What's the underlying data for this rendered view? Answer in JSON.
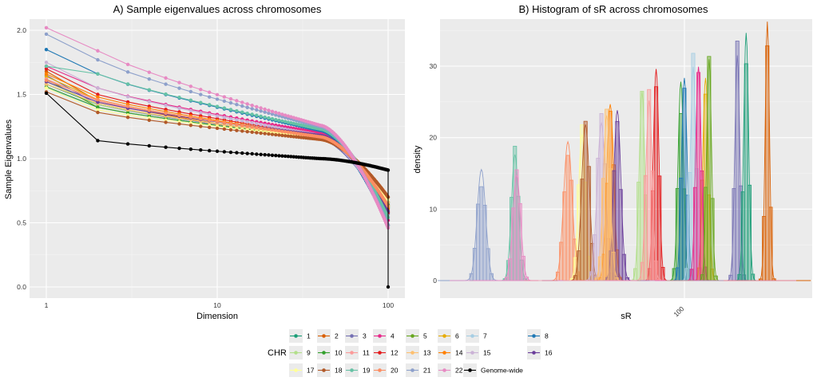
{
  "chart_data": [
    {
      "type": "line",
      "title": "A) Sample eigenvalues across chromosomes",
      "xlabel": "Dimension",
      "ylabel": "Sample Eigenvalues",
      "xscale": "log",
      "xlim": [
        1,
        100
      ],
      "ylim": [
        0,
        2.05
      ],
      "x_ticks": [
        1,
        10,
        100
      ],
      "x_tick_labels": [
        "1",
        "10",
        "100"
      ],
      "y_ticks": [
        0.0,
        0.5,
        1.0,
        1.5,
        2.0
      ],
      "y_tick_labels": [
        "0.0",
        "0.5",
        "1.0",
        "1.5",
        "2.0"
      ],
      "grid": true,
      "note_points": "each series has points at dimensions 1 through 100",
      "series": [
        {
          "name": "1",
          "color": "#1b9e77",
          "start": 1.58,
          "d2": 1.42,
          "knee": 1.17,
          "end": 0.62
        },
        {
          "name": "2",
          "color": "#d95f02",
          "start": 1.68,
          "d2": 1.45,
          "knee": 1.15,
          "end": 0.7
        },
        {
          "name": "3",
          "color": "#7570b3",
          "start": 1.65,
          "d2": 1.42,
          "knee": 1.16,
          "end": 0.57
        },
        {
          "name": "4",
          "color": "#e7298a",
          "start": 1.72,
          "d2": 1.55,
          "knee": 1.2,
          "end": 0.52
        },
        {
          "name": "5",
          "color": "#66a61e",
          "start": 1.62,
          "d2": 1.4,
          "knee": 1.16,
          "end": 0.66
        },
        {
          "name": "6",
          "color": "#e6ab02",
          "start": 1.64,
          "d2": 1.46,
          "knee": 1.17,
          "end": 0.63
        },
        {
          "name": "7",
          "color": "#a6cee3",
          "start": 1.55,
          "d2": 1.4,
          "knee": 1.16,
          "end": 0.65
        },
        {
          "name": "8",
          "color": "#1f78b4",
          "start": 1.85,
          "d2": 1.66,
          "knee": 1.22,
          "end": 0.48
        },
        {
          "name": "9",
          "color": "#b2df8a",
          "start": 1.6,
          "d2": 1.42,
          "knee": 1.17,
          "end": 0.62
        },
        {
          "name": "10",
          "color": "#33a02c",
          "start": 1.56,
          "d2": 1.4,
          "knee": 1.16,
          "end": 0.64
        },
        {
          "name": "11",
          "color": "#fb9a99",
          "start": 1.62,
          "d2": 1.45,
          "knee": 1.17,
          "end": 0.6
        },
        {
          "name": "12",
          "color": "#e31a1c",
          "start": 1.7,
          "d2": 1.5,
          "knee": 1.18,
          "end": 0.58
        },
        {
          "name": "13",
          "color": "#fdbf6f",
          "start": 1.58,
          "d2": 1.43,
          "knee": 1.16,
          "end": 0.66
        },
        {
          "name": "14",
          "color": "#ff7f00",
          "start": 1.66,
          "d2": 1.48,
          "knee": 1.17,
          "end": 0.61
        },
        {
          "name": "15",
          "color": "#cab2d6",
          "start": 1.75,
          "d2": 1.55,
          "knee": 1.18,
          "end": 0.55
        },
        {
          "name": "16",
          "color": "#6a3d9a",
          "start": 1.6,
          "d2": 1.44,
          "knee": 1.18,
          "end": 0.59
        },
        {
          "name": "17",
          "color": "#ffff99",
          "start": 1.55,
          "d2": 1.38,
          "knee": 1.16,
          "end": 0.68
        },
        {
          "name": "18",
          "color": "#b15928",
          "start": 1.52,
          "d2": 1.36,
          "knee": 1.15,
          "end": 0.7
        },
        {
          "name": "19",
          "color": "#66c2a5",
          "start": 1.72,
          "d2": 1.66,
          "knee": 1.23,
          "end": 0.54
        },
        {
          "name": "20",
          "color": "#fc8d62",
          "start": 1.61,
          "d2": 1.46,
          "knee": 1.17,
          "end": 0.63
        },
        {
          "name": "21",
          "color": "#8da0cb",
          "start": 1.97,
          "d2": 1.77,
          "knee": 1.25,
          "end": 0.48
        },
        {
          "name": "22",
          "color": "#e78ac3",
          "start": 2.02,
          "d2": 1.84,
          "knee": 1.26,
          "end": 0.46
        },
        {
          "name": "Genome-wide",
          "color": "#000000",
          "start": 1.51,
          "d2": 1.14,
          "knee": 1.0,
          "end": 0.91,
          "last": 0.0
        }
      ]
    },
    {
      "type": "histogram",
      "title": "B) Histogram of sR across chromosomes",
      "xlabel": "sR",
      "ylabel": "density",
      "xscale": "log",
      "x_ticks": [
        100
      ],
      "x_tick_labels": [
        "100"
      ],
      "y_ticks": [
        0,
        10,
        20,
        30
      ],
      "y_tick_labels": [
        "0",
        "10",
        "20",
        "30"
      ],
      "ylim": [
        0,
        35.5
      ],
      "xlim": [
        0.45,
        0.94
      ],
      "grid": true,
      "note_units": "groups are positioned by fraction of the panel width",
      "groups": [
        {
          "name": "21",
          "color": "#8da0cb",
          "center": 0.09,
          "peak": 14.8,
          "sd": 0.012
        },
        {
          "name": "19",
          "color": "#66c2a5",
          "center": 0.185,
          "peak": 16.8,
          "sd": 0.01
        },
        {
          "name": "22",
          "color": "#e78ac3",
          "center": 0.19,
          "peak": 14.0,
          "sd": 0.011
        },
        {
          "name": "20",
          "color": "#fc8d62",
          "center": 0.335,
          "peak": 18.5,
          "sd": 0.012
        },
        {
          "name": "17",
          "color": "#ffff99",
          "center": 0.375,
          "peak": 19.5,
          "sd": 0.01
        },
        {
          "name": "18",
          "color": "#b15928",
          "center": 0.385,
          "peak": 20.8,
          "sd": 0.011
        },
        {
          "name": "15",
          "color": "#cab2d6",
          "center": 0.43,
          "peak": 21.0,
          "sd": 0.012
        },
        {
          "name": "14",
          "color": "#ff7f00",
          "center": 0.455,
          "peak": 23.5,
          "sd": 0.01
        },
        {
          "name": "16",
          "color": "#6a3d9a",
          "center": 0.475,
          "peak": 22.7,
          "sd": 0.01
        },
        {
          "name": "13",
          "color": "#fdbf6f",
          "center": 0.445,
          "peak": 22.0,
          "sd": 0.01
        },
        {
          "name": "9",
          "color": "#b2df8a",
          "center": 0.545,
          "peak": 25.2,
          "sd": 0.008
        },
        {
          "name": "12",
          "color": "#e31a1c",
          "center": 0.585,
          "peak": 28.2,
          "sd": 0.008
        },
        {
          "name": "11",
          "color": "#fb9a99",
          "center": 0.565,
          "peak": 24.0,
          "sd": 0.009
        },
        {
          "name": "10",
          "color": "#33a02c",
          "center": 0.655,
          "peak": 26.5,
          "sd": 0.008
        },
        {
          "name": "8",
          "color": "#1f78b4",
          "center": 0.665,
          "peak": 27.0,
          "sd": 0.008
        },
        {
          "name": "7",
          "color": "#a6cee3",
          "center": 0.69,
          "peak": 28.5,
          "sd": 0.008
        },
        {
          "name": "6",
          "color": "#e6ab02",
          "center": 0.725,
          "peak": 27.0,
          "sd": 0.008
        },
        {
          "name": "4",
          "color": "#e7298a",
          "center": 0.705,
          "peak": 28.5,
          "sd": 0.008
        },
        {
          "name": "5",
          "color": "#66a61e",
          "center": 0.735,
          "peak": 29.5,
          "sd": 0.007
        },
        {
          "name": "3",
          "color": "#7570b3",
          "center": 0.815,
          "peak": 30.0,
          "sd": 0.007
        },
        {
          "name": "1",
          "color": "#1b9e77",
          "center": 0.84,
          "peak": 33.0,
          "sd": 0.007
        },
        {
          "name": "2",
          "color": "#d95f02",
          "center": 0.9,
          "peak": 34.5,
          "sd": 0.006
        }
      ]
    }
  ],
  "legend": {
    "title": "CHR",
    "items": [
      {
        "label": "1",
        "color": "#1b9e77"
      },
      {
        "label": "2",
        "color": "#d95f02"
      },
      {
        "label": "3",
        "color": "#7570b3"
      },
      {
        "label": "4",
        "color": "#e7298a"
      },
      {
        "label": "5",
        "color": "#66a61e"
      },
      {
        "label": "6",
        "color": "#e6ab02"
      },
      {
        "label": "7",
        "color": "#a6cee3"
      },
      {
        "label": "8",
        "color": "#1f78b4"
      },
      {
        "label": "9",
        "color": "#b2df8a"
      },
      {
        "label": "10",
        "color": "#33a02c"
      },
      {
        "label": "11",
        "color": "#fb9a99"
      },
      {
        "label": "12",
        "color": "#e31a1c"
      },
      {
        "label": "13",
        "color": "#fdbf6f"
      },
      {
        "label": "14",
        "color": "#ff7f00"
      },
      {
        "label": "15",
        "color": "#cab2d6"
      },
      {
        "label": "16",
        "color": "#6a3d9a"
      },
      {
        "label": "17",
        "color": "#ffff99"
      },
      {
        "label": "18",
        "color": "#b15928"
      },
      {
        "label": "19",
        "color": "#66c2a5"
      },
      {
        "label": "20",
        "color": "#fc8d62"
      },
      {
        "label": "21",
        "color": "#8da0cb"
      },
      {
        "label": "22",
        "color": "#e78ac3"
      },
      {
        "label": "Genome-wide",
        "color": "#000000"
      }
    ]
  }
}
